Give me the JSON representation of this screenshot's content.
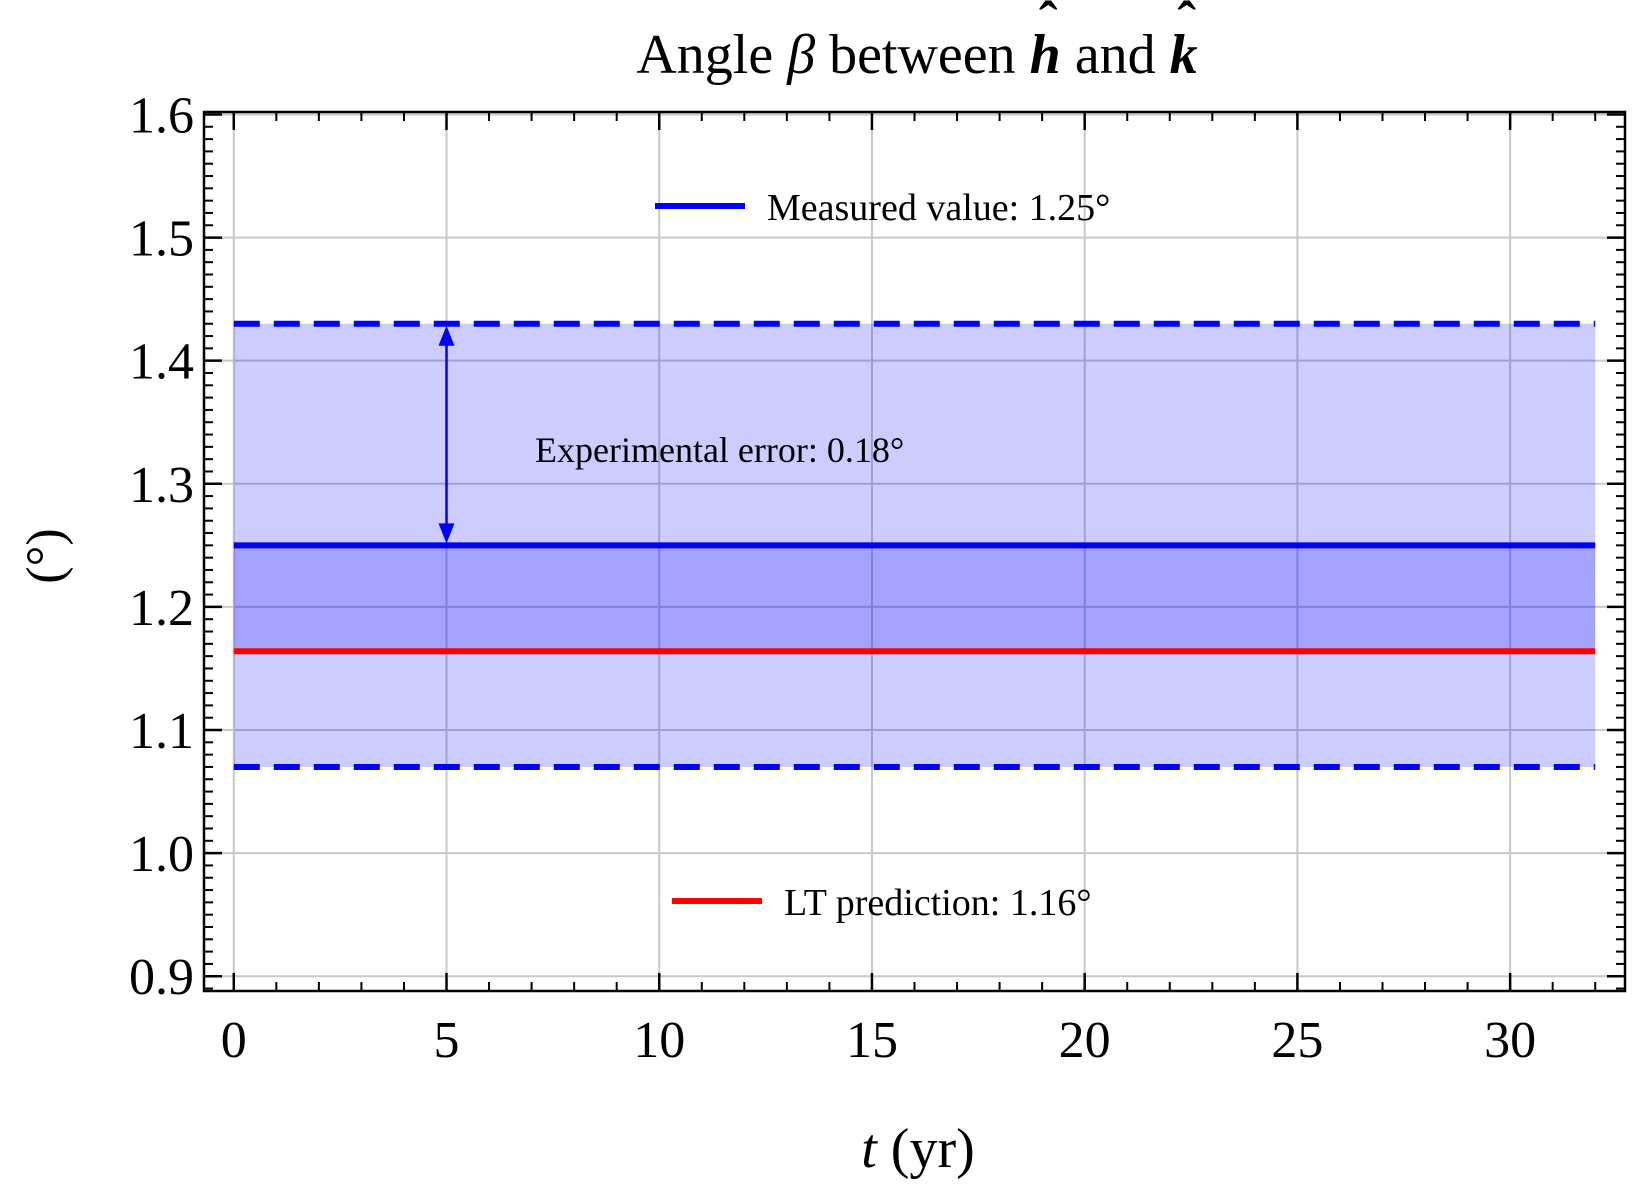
{
  "chart_data": {
    "type": "line",
    "title": {
      "prefix": "Angle ",
      "symbol": "β",
      "middle": " between ",
      "vec1": "h",
      "hat": "ˆ",
      "conj": " and ",
      "vec2": "k"
    },
    "xlabel": {
      "var": "t",
      "unit": " (yr)"
    },
    "ylabel": "(°)",
    "xlim": [
      -0.7,
      32.7
    ],
    "ylim": [
      0.888,
      1.602
    ],
    "x_ticks": [
      0,
      5,
      10,
      15,
      20,
      25,
      30
    ],
    "x_tick_labels": [
      "0",
      "5",
      "10",
      "15",
      "20",
      "25",
      "30"
    ],
    "y_ticks": [
      0.9,
      1.0,
      1.1,
      1.2,
      1.3,
      1.4,
      1.5,
      1.6
    ],
    "y_tick_labels": [
      "0.9",
      "1.0",
      "1.1",
      "1.2",
      "1.3",
      "1.4",
      "1.5",
      "1.6"
    ],
    "grid": true,
    "x_range": [
      0,
      32
    ],
    "measured": {
      "value": 1.25,
      "error": 0.18,
      "color": "#0000ff",
      "fill": "#0000ff"
    },
    "prediction": {
      "value": 1.164,
      "color": "#ff0000"
    },
    "arrow_x": 5,
    "legend": [
      {
        "label": "Measured value: 1.25°",
        "color": "#0000ff",
        "position": "top-center"
      },
      {
        "label": "LT prediction: 1.16°",
        "color": "#ff0000",
        "position": "bottom-center"
      }
    ],
    "annotations": [
      {
        "text": "Experimental error: 0.18°"
      }
    ]
  }
}
